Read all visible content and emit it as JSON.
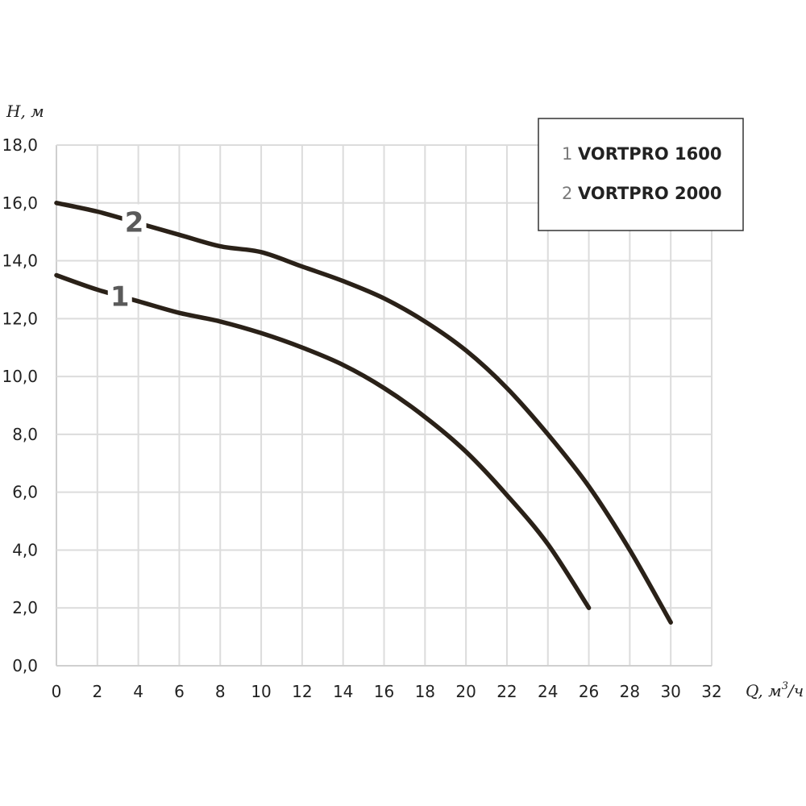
{
  "chart_data": {
    "type": "line",
    "xlabel": "Q, м³/ч",
    "xlabel_main": "Q, м",
    "xlabel_sup": "3",
    "xlabel_tail": "/ч",
    "ylabel": "H, м",
    "xlim": [
      0,
      32
    ],
    "ylim": [
      0,
      18
    ],
    "grid": true,
    "legend_position": "top-right",
    "x_ticks": [
      "0",
      "2",
      "4",
      "6",
      "8",
      "10",
      "12",
      "14",
      "16",
      "18",
      "20",
      "22",
      "24",
      "26",
      "28",
      "30",
      "32"
    ],
    "y_ticks": [
      "0,0",
      "2,0",
      "4,0",
      "6,0",
      "8,0",
      "10,0",
      "12,0",
      "14,0",
      "16,0",
      "18,0"
    ],
    "series": [
      {
        "name": "VORTPRO 1600",
        "number": "1",
        "curve_label": "1",
        "x": [
          0,
          2,
          4,
          6,
          8,
          10,
          12,
          14,
          16,
          18,
          20,
          22,
          24,
          26
        ],
        "y": [
          13.5,
          13.0,
          12.6,
          12.2,
          11.9,
          11.5,
          11.0,
          10.4,
          9.6,
          8.6,
          7.4,
          5.9,
          4.2,
          2.0
        ]
      },
      {
        "name": "VORTPRO 2000",
        "number": "2",
        "curve_label": "2",
        "x": [
          0,
          2,
          4,
          6,
          8,
          10,
          12,
          14,
          16,
          18,
          20,
          22,
          24,
          26,
          28,
          30
        ],
        "y": [
          16.0,
          15.7,
          15.3,
          14.9,
          14.5,
          14.3,
          13.8,
          13.3,
          12.7,
          11.9,
          10.9,
          9.6,
          8.0,
          6.2,
          4.0,
          1.5
        ]
      }
    ]
  }
}
